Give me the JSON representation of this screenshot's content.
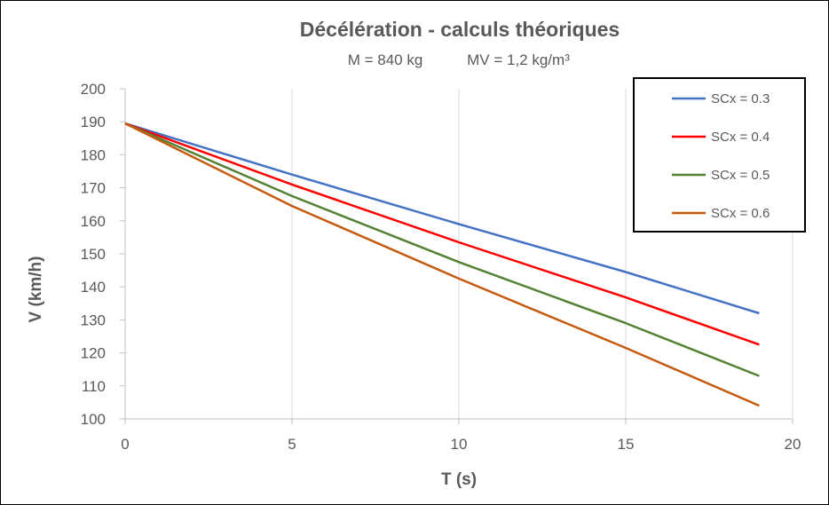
{
  "chart_data": {
    "type": "line",
    "title": "Décélération - calculs théoriques",
    "subtitle_mass": "M = 840 kg",
    "subtitle_density": "MV = 1,2 kg/m³",
    "xlabel": "T (s)",
    "ylabel": "V (km/h)",
    "xlim": [
      0,
      20
    ],
    "ylim": [
      100,
      200
    ],
    "xticks": [
      0,
      5,
      10,
      15,
      20
    ],
    "yticks": [
      100,
      110,
      120,
      130,
      140,
      150,
      160,
      170,
      180,
      190,
      200
    ],
    "grid": "vertical",
    "legend_position": "top-right",
    "series": [
      {
        "name": "SCx = 0.3",
        "color": "#4472C4",
        "x": [
          0,
          5,
          10,
          15,
          19
        ],
        "y": [
          189.5,
          174,
          159,
          144.5,
          132
        ]
      },
      {
        "name": "SCx = 0.4",
        "color": "#FF0000",
        "x": [
          0,
          5,
          10,
          15,
          19
        ],
        "y": [
          189.5,
          171,
          153.5,
          136.8,
          122.5
        ]
      },
      {
        "name": "SCx = 0.5",
        "color": "#548235",
        "x": [
          0,
          5,
          10,
          15,
          19
        ],
        "y": [
          189.5,
          167.5,
          147.5,
          129,
          113
        ]
      },
      {
        "name": "SCx = 0.6",
        "color": "#C55A11",
        "x": [
          0,
          5,
          10,
          15,
          19
        ],
        "y": [
          189.5,
          164.5,
          142.5,
          121.5,
          104
        ]
      }
    ]
  }
}
